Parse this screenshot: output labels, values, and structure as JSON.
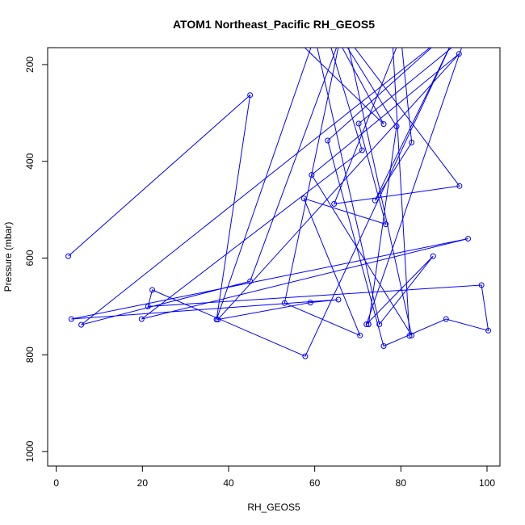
{
  "chart_data": {
    "type": "line",
    "title": "ATOM1 Northeast_Pacific RH_GEOS5",
    "xlabel": "RH_GEOS5",
    "ylabel": "Pressure (mbar)",
    "xlim": [
      -2,
      103
    ],
    "ylim": [
      1030,
      165
    ],
    "y_reversed": true,
    "x_ticks": [
      0,
      20,
      40,
      60,
      80,
      100
    ],
    "y_ticks": [
      200,
      400,
      600,
      800,
      1000
    ],
    "grid": false,
    "series": [
      {
        "color": "#0000ff",
        "points": [
          [
            2.8,
            596
          ],
          [
            45,
            263
          ],
          [
            37.2,
            727
          ],
          [
            60,
            142
          ],
          [
            75,
            737
          ],
          [
            87.5,
            596
          ],
          [
            72,
            737
          ],
          [
            95,
            142
          ],
          [
            70.2,
            322
          ],
          [
            76.5,
            530
          ],
          [
            57.5,
            477
          ],
          [
            70.5,
            760
          ],
          [
            53,
            693
          ],
          [
            66,
            142
          ],
          [
            45,
            648
          ],
          [
            5.8,
            738
          ],
          [
            90,
            142
          ],
          [
            63,
            357
          ],
          [
            76,
            782
          ],
          [
            90.5,
            726
          ],
          [
            100.3,
            750
          ],
          [
            98.7,
            656
          ],
          [
            21.3,
            700
          ],
          [
            22.3,
            666
          ],
          [
            57.8,
            803
          ],
          [
            92.5,
            142
          ],
          [
            74,
            481
          ],
          [
            82.5,
            361
          ],
          [
            80,
            142
          ],
          [
            64.5,
            488
          ],
          [
            93.6,
            451
          ],
          [
            67.3,
            142
          ],
          [
            82.5,
            760
          ],
          [
            59.3,
            428
          ],
          [
            93.5,
            178
          ],
          [
            37.5,
            727
          ],
          [
            59,
            692
          ],
          [
            65.5,
            686
          ],
          [
            3.5,
            726
          ],
          [
            95.6,
            560
          ],
          [
            19.8,
            726
          ],
          [
            71,
            377
          ],
          [
            63,
            142
          ],
          [
            44.8,
            142
          ],
          [
            18,
            142
          ]
        ]
      },
      {
        "color": "#0000ff",
        "points": [
          [
            72.5,
            737
          ],
          [
            72.5,
            737
          ],
          [
            79,
            328
          ],
          [
            66,
            142
          ],
          [
            55,
            142
          ],
          [
            76,
            323
          ],
          [
            65,
            142
          ],
          [
            78,
            142
          ],
          [
            82,
            761
          ]
        ]
      }
    ]
  }
}
